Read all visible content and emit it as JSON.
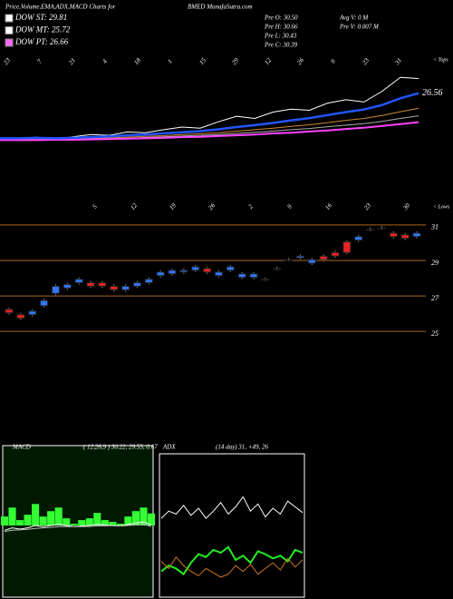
{
  "header": {
    "left": "Price,Volume,EMA,ADX,MACD Charts for",
    "center": "BMED MunafaSutra.com"
  },
  "legend": [
    {
      "label": "DOW ST: 29.81",
      "color": "#ffffff"
    },
    {
      "label": "DOW MT: 25.72",
      "color": "#ffffff"
    },
    {
      "label": "DOW PT: 26.66",
      "color": "#ff66ff"
    }
  ],
  "info": [
    "Pre  O: 30.50",
    "Pre  H: 30.66",
    "Pre  L: 30.43",
    "Pre  C: 30.39",
    "Avg V: 0  M",
    "Pre  V: 0.007 M"
  ],
  "chart_data": [
    {
      "type": "line",
      "top_label": "< Tops",
      "end_label": "26.56",
      "xlabels": [
        "23",
        "7",
        "21",
        "4",
        "18",
        "1",
        "15",
        "29",
        "12",
        "26",
        "9",
        "23",
        "31"
      ],
      "ylim": [
        9,
        43
      ],
      "series": [
        {
          "color": "#ffffff",
          "values": [
            14.6,
            14.2,
            14.8,
            14.1,
            14.9,
            15.5,
            15.3,
            16.2,
            16.0,
            16.8,
            17.5,
            17.2,
            18.9,
            20.4,
            19.8,
            21.5,
            22.3,
            22.0,
            23.9,
            24.8,
            24.2,
            27.1,
            30.8,
            30.5
          ]
        },
        {
          "color": "#cc8833",
          "values": [
            14.2,
            14.2,
            14.3,
            14.3,
            14.4,
            14.5,
            14.6,
            14.8,
            15.0,
            15.2,
            15.5,
            15.7,
            16.0,
            16.4,
            16.8,
            17.2,
            17.7,
            18.1,
            18.7,
            19.3,
            19.8,
            20.6,
            21.6,
            22.5
          ]
        },
        {
          "color": "#aaaaaa",
          "values": [
            14.0,
            14.0,
            14.1,
            14.1,
            14.2,
            14.3,
            14.4,
            14.5,
            14.7,
            14.9,
            15.1,
            15.3,
            15.5,
            15.8,
            16.1,
            16.4,
            16.8,
            17.1,
            17.6,
            18.0,
            18.4,
            19.0,
            19.8,
            20.5
          ]
        },
        {
          "color": "#ff44ff",
          "values": [
            14.0,
            14.0,
            14.0,
            14.1,
            14.1,
            14.2,
            14.3,
            14.4,
            14.5,
            14.6,
            14.8,
            14.9,
            15.1,
            15.3,
            15.5,
            15.8,
            16.0,
            16.3,
            16.6,
            17.0,
            17.3,
            17.8,
            18.3,
            18.8
          ]
        },
        {
          "color": "#2255ff",
          "values": [
            14.5,
            14.5,
            14.6,
            14.5,
            14.6,
            14.8,
            15.0,
            15.3,
            15.5,
            15.8,
            16.1,
            16.4,
            16.9,
            17.5,
            18.0,
            18.6,
            19.3,
            19.9,
            20.7,
            21.5,
            22.2,
            23.4,
            25.2,
            26.56
          ]
        }
      ]
    },
    {
      "type": "candlestick",
      "bottom_label": "< Lows",
      "xlabels": [
        "5",
        "12",
        "19",
        "26",
        "2",
        "9",
        "16",
        "23",
        "30"
      ],
      "ylim": [
        24.6,
        31.2
      ],
      "yticks": [
        25,
        27,
        29,
        31
      ],
      "up_color": "#3377ff",
      "down_color": "#ee2222",
      "open": [
        26.4,
        26.1,
        26.1,
        26.6,
        27.3,
        27.6,
        27.9,
        27.9,
        27.9,
        27.7,
        27.5,
        27.7,
        27.9,
        28.3,
        28.4,
        28.5,
        28.6,
        28.7,
        28.3,
        28.6,
        28.2,
        28.2,
        28.1,
        28.7,
        29.2,
        29.3,
        29.0,
        29.4,
        29.6,
        30.2,
        30.3,
        30.9,
        31.0,
        30.7,
        30.6,
        30.5
      ],
      "high": [
        26.5,
        26.2,
        26.4,
        27.0,
        27.8,
        27.9,
        28.2,
        28.0,
        28.0,
        27.8,
        27.8,
        28.0,
        28.2,
        28.6,
        28.7,
        28.7,
        28.9,
        28.8,
        28.6,
        28.9,
        28.5,
        28.5,
        28.2,
        28.8,
        29.3,
        29.5,
        29.3,
        29.5,
        29.7,
        30.3,
        30.6,
        31.0,
        31.1,
        30.8,
        30.7,
        30.8
      ],
      "low": [
        26.1,
        25.8,
        26.0,
        26.5,
        27.2,
        27.5,
        27.8,
        27.6,
        27.6,
        27.4,
        27.4,
        27.6,
        27.8,
        28.2,
        28.3,
        28.4,
        28.5,
        28.4,
        28.2,
        28.5,
        28.1,
        28.1,
        28.0,
        28.6,
        29.1,
        29.2,
        28.9,
        29.1,
        29.3,
        29.5,
        30.2,
        30.8,
        30.9,
        30.4,
        30.3,
        30.4
      ],
      "close": [
        26.2,
        25.9,
        26.3,
        26.9,
        27.7,
        27.8,
        28.1,
        27.7,
        27.7,
        27.5,
        27.7,
        27.9,
        28.1,
        28.5,
        28.6,
        28.6,
        28.8,
        28.5,
        28.5,
        28.8,
        28.4,
        28.4,
        28.1,
        28.7,
        29.2,
        29.4,
        29.2,
        29.2,
        29.4,
        29.6,
        30.5,
        30.9,
        31.0,
        30.5,
        30.4,
        30.7
      ]
    },
    {
      "type": "macd",
      "title": "MACD",
      "label": "( 12,26,9 ) 30.22, 29.55, 0.67",
      "ylim": [
        0,
        60
      ],
      "y2lim": [
        -4,
        4
      ],
      "series": [
        {
          "color": "#ffffff",
          "values": [
            28.0,
            29.0,
            28.5,
            29.0,
            30.0,
            29.5,
            30.0,
            30.5,
            30.0,
            29.5,
            29.8,
            30.0,
            30.5,
            30.2,
            30.0,
            29.8,
            30.5,
            31.0,
            31.5,
            30.22
          ]
        },
        {
          "color": "#bbbbbb",
          "values": [
            27.5,
            28.0,
            28.2,
            28.4,
            28.8,
            29.0,
            29.2,
            29.5,
            29.6,
            29.5,
            29.5,
            29.6,
            29.8,
            29.9,
            29.9,
            29.8,
            30.0,
            30.2,
            30.5,
            29.55
          ]
        },
        {
          "color": "#33ff33",
          "axis": "y2",
          "values": [
            0.5,
            1.0,
            0.3,
            0.6,
            1.2,
            0.5,
            0.8,
            1.0,
            0.4,
            0.1,
            0.3,
            0.4,
            0.7,
            0.3,
            0.2,
            0.1,
            0.5,
            0.8,
            1.0,
            0.67
          ]
        }
      ]
    },
    {
      "type": "adx",
      "title": "ADX",
      "label": "(14  day) 31,  +49,  26",
      "ylim": [
        0,
        100
      ],
      "series": [
        {
          "color": "#ffffff",
          "values": [
            55,
            60,
            58,
            64,
            57,
            62,
            55,
            60,
            66,
            58,
            63,
            70,
            60,
            65,
            56,
            62,
            58,
            67,
            63,
            59
          ]
        },
        {
          "color": "#22ee22",
          "values": [
            18,
            22,
            20,
            16,
            24,
            30,
            28,
            33,
            31,
            35,
            26,
            29,
            24,
            32,
            30,
            27,
            29,
            25,
            33,
            31
          ]
        },
        {
          "color": "#cc7722",
          "values": [
            25,
            20,
            28,
            22,
            18,
            15,
            20,
            17,
            14,
            16,
            22,
            18,
            23,
            16,
            20,
            24,
            19,
            27,
            21,
            26
          ]
        }
      ]
    }
  ]
}
